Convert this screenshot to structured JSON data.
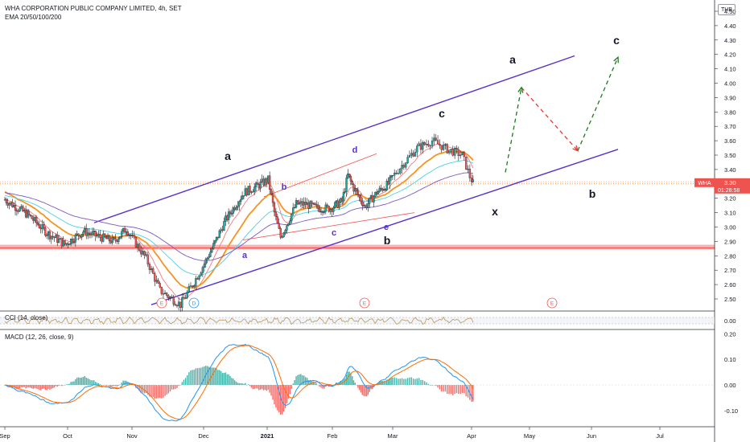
{
  "header": {
    "title": "WHA CORPORATION PUBLIC COMPANY LIMITED, 4h, SET",
    "indicator": "EMA 20/50/100/200",
    "currency": "THB"
  },
  "panes": {
    "cci_label": "CCI (14, close)",
    "macd_label": "MACD (12, 26, close, 9)"
  },
  "price_badge": {
    "symbol": "WHA",
    "price": "3.30",
    "countdown": "01:28:58"
  },
  "colors": {
    "up": "#26a69a",
    "down": "#ef5350",
    "channel": "#5b2fc9",
    "ema20": "#f06e6e",
    "ema50": "#f7931e",
    "ema100": "#4dd0e1",
    "ema200": "#7e57c2",
    "resistance": "#ef5350",
    "projection_up": "#1b7b1b",
    "projection_down": "#e53935",
    "macd": "#2196f3",
    "signal": "#ff6d00",
    "cci": "#b08d3a"
  },
  "chart_data": [
    {
      "type": "candlestick",
      "title": "WHA CORPORATION PUBLIC COMPANY LIMITED, 4h, SET",
      "ylim": [
        2.42,
        4.58
      ],
      "y_ticks": [
        "4.50",
        "4.40",
        "4.30",
        "4.20",
        "4.10",
        "4.00",
        "3.90",
        "3.80",
        "3.70",
        "3.60",
        "3.50",
        "3.40",
        "3.30",
        "3.20",
        "3.10",
        "3.00",
        "2.90",
        "2.80",
        "2.70",
        "2.60",
        "2.50"
      ],
      "x_ticks": [
        "Sep",
        "Oct",
        "Nov",
        "Dec",
        "2021",
        "Feb",
        "Mar",
        "Apr",
        "May",
        "Jun",
        "Jul"
      ],
      "candle_trend_close": [
        [
          0,
          3.19
        ],
        [
          0.8,
          3.08
        ],
        [
          1.4,
          2.96
        ],
        [
          2.0,
          2.88
        ],
        [
          2.6,
          2.97
        ],
        [
          3.0,
          2.94
        ],
        [
          3.6,
          2.9
        ],
        [
          4.0,
          2.99
        ],
        [
          4.6,
          2.78
        ],
        [
          5.0,
          2.56
        ],
        [
          5.6,
          2.46
        ],
        [
          6.0,
          2.62
        ],
        [
          6.6,
          2.87
        ],
        [
          7.0,
          3.05
        ],
        [
          7.6,
          3.24
        ],
        [
          8.0,
          3.28
        ],
        [
          8.4,
          3.33
        ],
        [
          8.6,
          3.1
        ],
        [
          8.8,
          2.93
        ],
        [
          9.0,
          3.02
        ],
        [
          9.3,
          3.16
        ],
        [
          9.6,
          3.16
        ],
        [
          10.0,
          3.13
        ],
        [
          10.4,
          3.13
        ],
        [
          10.8,
          3.18
        ],
        [
          11.0,
          3.36
        ],
        [
          11.2,
          3.27
        ],
        [
          11.6,
          3.14
        ],
        [
          12.0,
          3.24
        ],
        [
          12.4,
          3.3
        ],
        [
          12.8,
          3.43
        ],
        [
          13.2,
          3.55
        ],
        [
          13.6,
          3.6
        ],
        [
          14.0,
          3.54
        ],
        [
          14.4,
          3.5
        ],
        [
          14.6,
          3.35
        ],
        [
          14.75,
          3.28
        ]
      ],
      "series": [
        {
          "name": "EMA 20"
        },
        {
          "name": "EMA 50"
        },
        {
          "name": "EMA 100"
        },
        {
          "name": "EMA 200"
        }
      ],
      "levels": {
        "current_price": 3.3,
        "resistance_zone": [
          2.84,
          2.86
        ]
      },
      "wave_labels": [
        {
          "text": "a",
          "x": 7.2,
          "y": 3.44
        },
        {
          "text": "b",
          "x": 8.7,
          "y": 3.21
        },
        {
          "text": "a",
          "x": 7.6,
          "y": 2.86
        },
        {
          "text": "c",
          "x": 10.3,
          "y": 3.0
        },
        {
          "text": "d",
          "x": 11.0,
          "y": 3.5
        },
        {
          "text": "e",
          "x": 11.9,
          "y": 3.03
        },
        {
          "text": "b",
          "x": 12.0,
          "y": 2.95
        },
        {
          "text": "c",
          "x": 13.5,
          "y": 3.76
        },
        {
          "text": "x",
          "x": 15.2,
          "y": 3.12
        },
        {
          "text": "a",
          "x": 15.7,
          "y": 4.2
        },
        {
          "text": "b",
          "x": 18.2,
          "y": 3.23
        },
        {
          "text": "c",
          "x": 19.0,
          "y": 4.4
        }
      ],
      "event_markers": [
        {
          "text": "E",
          "x": 5.1
        },
        {
          "text": "D",
          "x": 6.0
        },
        {
          "text": "E",
          "x": 11.25
        },
        {
          "text": "E",
          "x": 17.1
        }
      ]
    },
    {
      "type": "line",
      "title": "CCI (14, close)",
      "y_ticks": [
        "0.00"
      ]
    },
    {
      "type": "bar",
      "title": "MACD (12, 26, close, 9)",
      "y_ticks": [
        "0.20",
        "0.10",
        "0.00",
        "-0.10"
      ]
    }
  ]
}
